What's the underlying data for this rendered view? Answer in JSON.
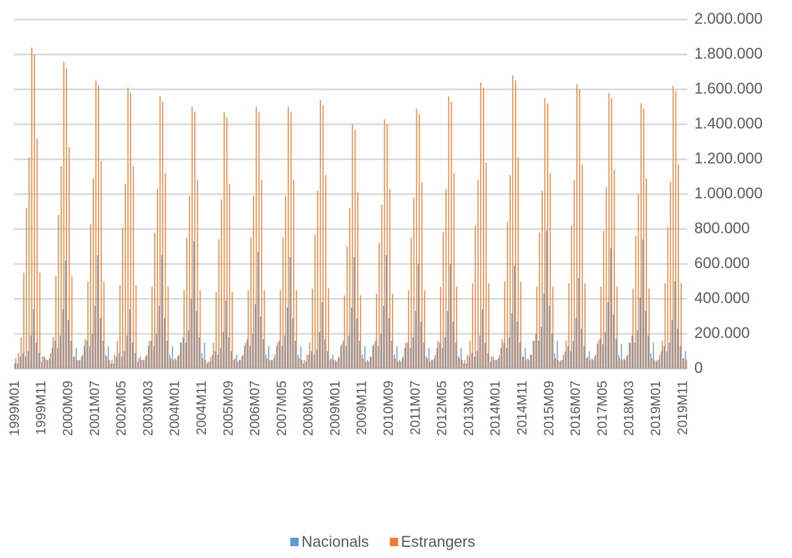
{
  "chart_data": {
    "type": "bar",
    "categories": [
      "1999M01",
      null,
      null,
      null,
      null,
      null,
      null,
      null,
      null,
      null,
      "1999M11",
      null,
      null,
      null,
      null,
      null,
      null,
      null,
      null,
      null,
      "2000M09",
      null,
      null,
      null,
      null,
      null,
      null,
      null,
      null,
      null,
      "2001M07",
      null,
      null,
      null,
      null,
      null,
      null,
      null,
      null,
      null,
      "2002M05",
      null,
      null,
      null,
      null,
      null,
      null,
      null,
      null,
      null,
      "2003M03",
      null,
      null,
      null,
      null,
      null,
      null,
      null,
      null,
      null,
      "2004M01",
      null,
      null,
      null,
      null,
      null,
      null,
      null,
      null,
      null,
      "2004M11",
      null,
      null,
      null,
      null,
      null,
      null,
      null,
      null,
      null,
      "2005M09",
      null,
      null,
      null,
      null,
      null,
      null,
      null,
      null,
      null,
      "2006M07",
      null,
      null,
      null,
      null,
      null,
      null,
      null,
      null,
      null,
      "2007M05",
      null,
      null,
      null,
      null,
      null,
      null,
      null,
      null,
      null,
      "2008M03",
      null,
      null,
      null,
      null,
      null,
      null,
      null,
      null,
      null,
      "2009M01",
      null,
      null,
      null,
      null,
      null,
      null,
      null,
      null,
      null,
      "2009M11",
      null,
      null,
      null,
      null,
      null,
      null,
      null,
      null,
      null,
      "2010M09",
      null,
      null,
      null,
      null,
      null,
      null,
      null,
      null,
      null,
      "2011M07",
      null,
      null,
      null,
      null,
      null,
      null,
      null,
      null,
      null,
      "2012M05",
      null,
      null,
      null,
      null,
      null,
      null,
      null,
      null,
      null,
      "2013M03",
      null,
      null,
      null,
      null,
      null,
      null,
      null,
      null,
      null,
      "2014M01",
      null,
      null,
      null,
      null,
      null,
      null,
      null,
      null,
      null,
      "2014M11",
      null,
      null,
      null,
      null,
      null,
      null,
      null,
      null,
      null,
      "2015M09",
      null,
      null,
      null,
      null,
      null,
      null,
      null,
      null,
      null,
      "2016M07",
      null,
      null,
      null,
      null,
      null,
      null,
      null,
      null,
      null,
      "2017M05",
      null,
      null,
      null,
      null,
      null,
      null,
      null,
      null,
      null,
      "2018M03",
      null,
      null,
      null,
      null,
      null,
      null,
      null,
      null,
      null,
      "2019M01",
      null,
      null,
      null,
      null,
      null,
      null,
      null,
      null,
      null,
      "2019M11",
      null
    ],
    "series": [
      {
        "name": "Nacionals",
        "color": "#5b9bd5",
        "values": [
          30000,
          30000,
          70000,
          90000,
          70000,
          100000,
          190000,
          340000,
          150000,
          90000,
          40000,
          70000,
          50000,
          60000,
          120000,
          160000,
          120000,
          190000,
          340000,
          620000,
          280000,
          160000,
          70000,
          120000,
          50000,
          70000,
          130000,
          160000,
          130000,
          200000,
          360000,
          650000,
          290000,
          160000,
          80000,
          130000,
          30000,
          30000,
          70000,
          90000,
          70000,
          100000,
          190000,
          340000,
          150000,
          90000,
          40000,
          70000,
          50000,
          70000,
          130000,
          160000,
          130000,
          200000,
          360000,
          650000,
          290000,
          160000,
          80000,
          130000,
          60000,
          70000,
          150000,
          180000,
          150000,
          220000,
          400000,
          730000,
          330000,
          180000,
          90000,
          150000,
          30000,
          40000,
          80000,
          100000,
          80000,
          120000,
          210000,
          390000,
          180000,
          100000,
          50000,
          80000,
          50000,
          70000,
          130000,
          170000,
          130000,
          200000,
          370000,
          670000,
          300000,
          170000,
          80000,
          130000,
          50000,
          60000,
          130000,
          160000,
          130000,
          190000,
          350000,
          640000,
          290000,
          160000,
          80000,
          130000,
          30000,
          40000,
          80000,
          100000,
          80000,
          110000,
          210000,
          380000,
          170000,
          100000,
          50000,
          80000,
          50000,
          60000,
          130000,
          160000,
          130000,
          190000,
          350000,
          640000,
          290000,
          160000,
          80000,
          130000,
          50000,
          70000,
          130000,
          160000,
          130000,
          200000,
          360000,
          650000,
          290000,
          160000,
          80000,
          130000,
          50000,
          60000,
          120000,
          150000,
          120000,
          180000,
          330000,
          600000,
          270000,
          150000,
          70000,
          120000,
          50000,
          60000,
          120000,
          150000,
          120000,
          180000,
          330000,
          600000,
          270000,
          150000,
          70000,
          120000,
          30000,
          30000,
          70000,
          90000,
          70000,
          100000,
          190000,
          340000,
          150000,
          90000,
          40000,
          70000,
          50000,
          60000,
          120000,
          150000,
          120000,
          180000,
          320000,
          590000,
          270000,
          150000,
          70000,
          120000,
          60000,
          80000,
          160000,
          200000,
          160000,
          240000,
          430000,
          790000,
          360000,
          200000,
          90000,
          160000,
          40000,
          50000,
          100000,
          130000,
          100000,
          160000,
          290000,
          520000,
          230000,
          130000,
          60000,
          100000,
          60000,
          70000,
          140000,
          170000,
          140000,
          210000,
          380000,
          690000,
          310000,
          170000,
          80000,
          140000,
          60000,
          70000,
          150000,
          190000,
          150000,
          220000,
          410000,
          740000,
          330000,
          190000,
          90000,
          150000,
          40000,
          50000,
          100000,
          130000,
          100000,
          150000,
          280000,
          500000,
          230000,
          130000,
          60000,
          100000
        ]
      },
      {
        "name": "Estrangers",
        "color": "#ed7d31",
        "values": [
          60000,
          90000,
          180000,
          550000,
          920000,
          1210000,
          1840000,
          1800000,
          1320000,
          550000,
          70000,
          60000,
          50000,
          90000,
          180000,
          530000,
          880000,
          1160000,
          1760000,
          1720000,
          1270000,
          530000,
          70000,
          50000,
          50000,
          80000,
          170000,
          500000,
          830000,
          1090000,
          1650000,
          1620000,
          1190000,
          500000,
          70000,
          50000,
          50000,
          80000,
          160000,
          480000,
          810000,
          1060000,
          1610000,
          1580000,
          1160000,
          480000,
          60000,
          50000,
          50000,
          80000,
          160000,
          470000,
          780000,
          1030000,
          1560000,
          1530000,
          1120000,
          470000,
          60000,
          50000,
          50000,
          80000,
          150000,
          450000,
          750000,
          990000,
          1500000,
          1470000,
          1080000,
          450000,
          60000,
          50000,
          40000,
          70000,
          150000,
          440000,
          740000,
          970000,
          1470000,
          1440000,
          1060000,
          440000,
          60000,
          40000,
          50000,
          80000,
          150000,
          450000,
          750000,
          990000,
          1500000,
          1470000,
          1080000,
          450000,
          60000,
          50000,
          50000,
          80000,
          150000,
          450000,
          750000,
          990000,
          1500000,
          1470000,
          1080000,
          450000,
          60000,
          50000,
          50000,
          80000,
          150000,
          460000,
          770000,
          1020000,
          1540000,
          1510000,
          1110000,
          460000,
          60000,
          50000,
          40000,
          70000,
          140000,
          420000,
          700000,
          920000,
          1400000,
          1370000,
          1010000,
          420000,
          60000,
          40000,
          40000,
          70000,
          140000,
          430000,
          720000,
          940000,
          1430000,
          1400000,
          1030000,
          430000,
          60000,
          40000,
          40000,
          70000,
          150000,
          450000,
          750000,
          980000,
          1490000,
          1460000,
          1070000,
          450000,
          60000,
          40000,
          50000,
          80000,
          160000,
          470000,
          780000,
          1030000,
          1560000,
          1530000,
          1120000,
          470000,
          60000,
          50000,
          50000,
          80000,
          160000,
          490000,
          820000,
          1080000,
          1640000,
          1610000,
          1180000,
          490000,
          70000,
          50000,
          50000,
          80000,
          170000,
          500000,
          840000,
          1110000,
          1680000,
          1650000,
          1210000,
          500000,
          70000,
          50000,
          50000,
          80000,
          160000,
          470000,
          780000,
          1020000,
          1550000,
          1520000,
          1120000,
          470000,
          60000,
          50000,
          50000,
          80000,
          160000,
          490000,
          820000,
          1080000,
          1630000,
          1600000,
          1170000,
          490000,
          70000,
          50000,
          50000,
          80000,
          160000,
          470000,
          790000,
          1040000,
          1580000,
          1550000,
          1140000,
          470000,
          60000,
          50000,
          50000,
          80000,
          150000,
          460000,
          760000,
          1000000,
          1520000,
          1490000,
          1090000,
          460000,
          60000,
          50000,
          50000,
          80000,
          160000,
          490000,
          810000,
          1070000,
          1620000,
          1590000,
          1170000,
          490000,
          60000,
          50000
        ]
      }
    ],
    "ylim": [
      0,
      2000000
    ],
    "yticks": [
      0,
      {
        "value": 200000,
        "label": "200.000"
      },
      {
        "value": 400000,
        "label": "400.000"
      },
      {
        "value": 600000,
        "label": "600.000"
      },
      {
        "value": 800000,
        "label": "800.000"
      },
      {
        "value": 1000000,
        "label": "1.000.000"
      },
      {
        "value": 1200000,
        "label": "1.200.000"
      },
      {
        "value": 1400000,
        "label": "1.400.000"
      },
      {
        "value": 1600000,
        "label": "1.600.000"
      },
      {
        "value": 1800000,
        "label": "1.800.000"
      },
      {
        "value": 2000000,
        "label": "2.000.000"
      }
    ],
    "grid": true,
    "legend": "bottom"
  }
}
